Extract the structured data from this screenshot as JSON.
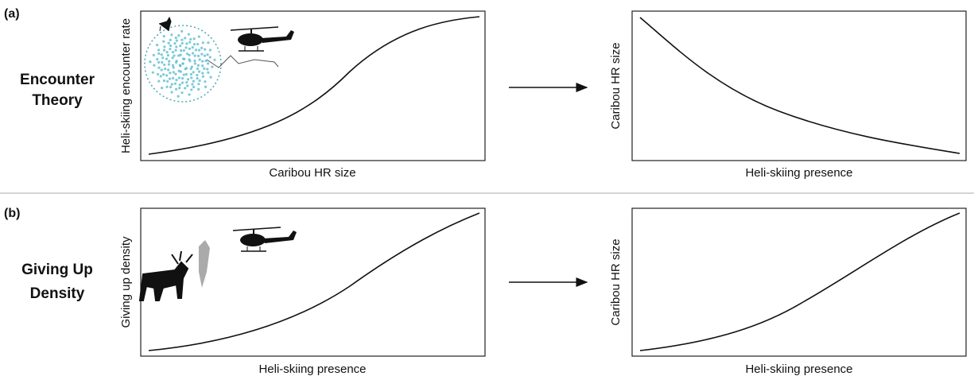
{
  "panels": [
    {
      "label": "(a)",
      "title": [
        "Encounter",
        "Theory"
      ],
      "left": {
        "ylabel": "Heli-skiing encounter rate",
        "xlabel": "Caribou HR size"
      },
      "right": {
        "ylabel": "Caribou HR size",
        "xlabel": "Heli-skiing presence"
      }
    },
    {
      "label": "(b)",
      "title": [
        "Giving Up",
        "Density"
      ],
      "left": {
        "ylabel": "Giving up density",
        "xlabel": "Heli-skiing presence"
      },
      "right": {
        "ylabel": "Caribou HR size",
        "xlabel": "Heli-skiing presence"
      }
    }
  ]
}
